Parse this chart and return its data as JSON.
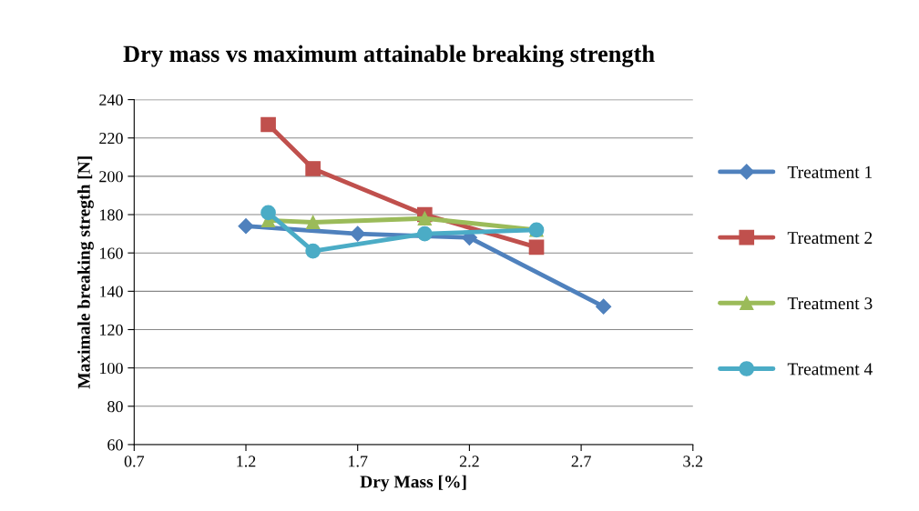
{
  "chart_data": {
    "type": "line",
    "title": "Dry mass vs maximum attainable breaking strength",
    "xlabel": "Dry Mass [%]",
    "ylabel": "Maximale breaking stregth [N]",
    "xlim": [
      0.7,
      3.2
    ],
    "xticks": [
      0.7,
      1.2,
      1.7,
      2.2,
      2.7,
      3.2
    ],
    "ylim": [
      60,
      240
    ],
    "yticks": [
      60,
      80,
      100,
      120,
      140,
      160,
      180,
      200,
      220,
      240
    ],
    "grid": "y",
    "legend": "right",
    "line_style": "solid",
    "series": [
      {
        "name": "Treatment 1",
        "color": "#4f81bd",
        "marker": "diamond",
        "x": [
          1.2,
          1.7,
          2.2,
          2.8
        ],
        "values": [
          174,
          170,
          168,
          132
        ]
      },
      {
        "name": "Treatment 2",
        "color": "#c0504d",
        "marker": "square",
        "x": [
          1.3,
          1.5,
          2.0,
          2.5
        ],
        "values": [
          227,
          204,
          180,
          163
        ]
      },
      {
        "name": "Treatment 3",
        "color": "#9bbb59",
        "marker": "triangle",
        "x": [
          1.3,
          1.5,
          2.0,
          2.5
        ],
        "values": [
          177,
          176,
          178,
          172
        ]
      },
      {
        "name": "Treatment 4",
        "color": "#4bacc6",
        "marker": "circle",
        "x": [
          1.3,
          1.5,
          2.0,
          2.5
        ],
        "values": [
          181,
          161,
          170,
          172
        ]
      }
    ]
  }
}
